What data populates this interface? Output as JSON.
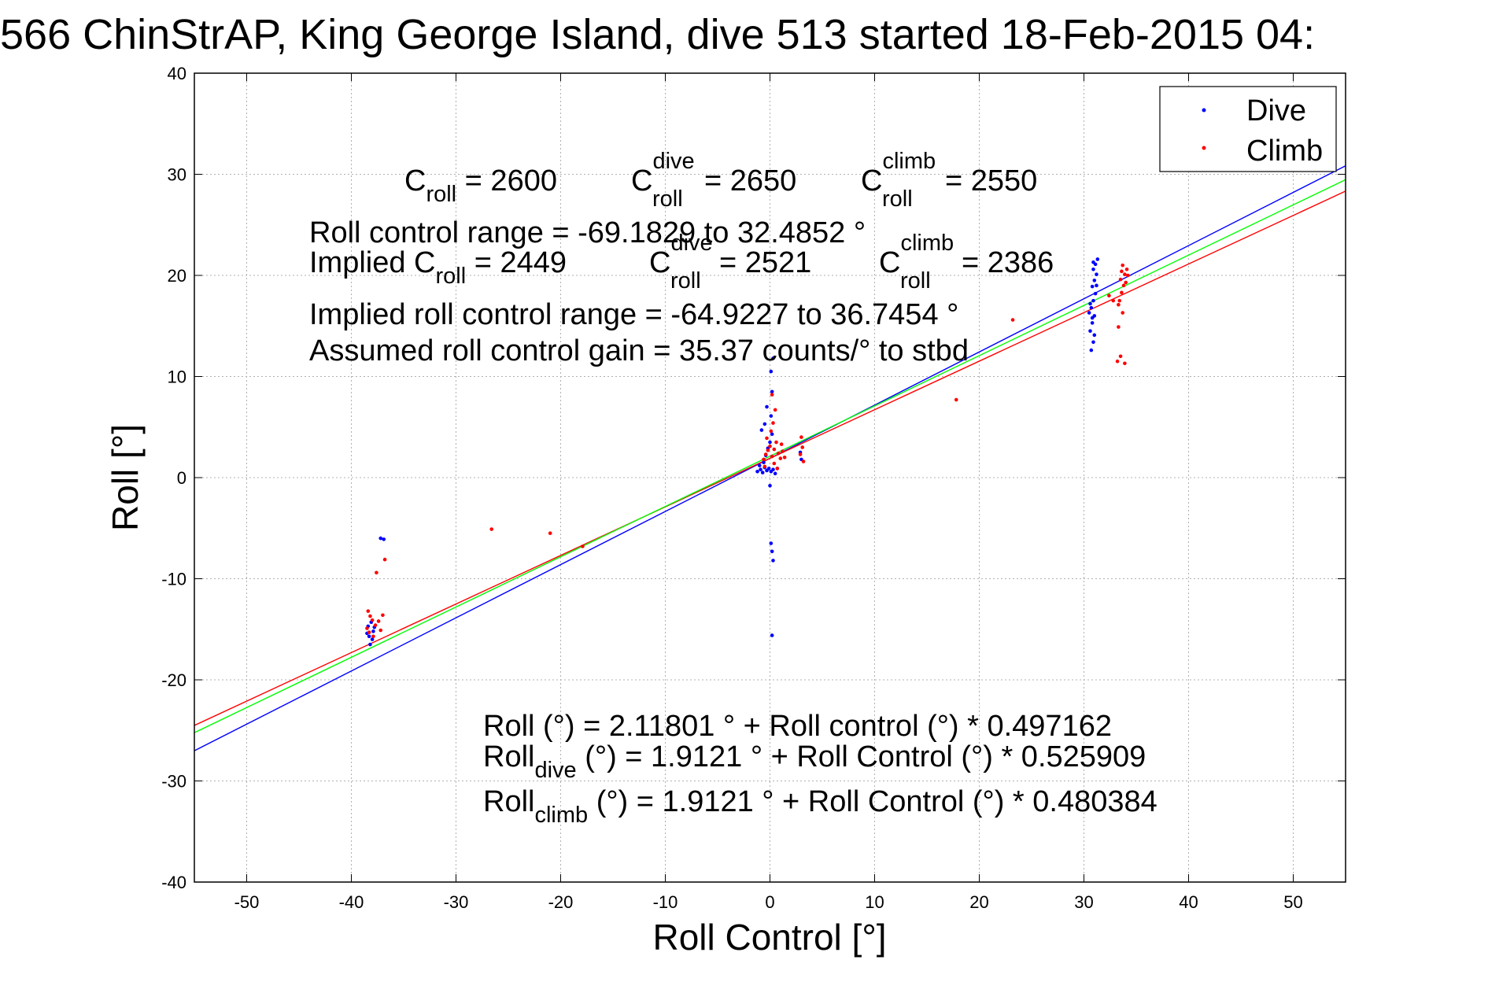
{
  "chart_data": {
    "type": "scatter",
    "title": "566 ChinStrAP, King George Island, dive 513 started 18-Feb-2015 04:",
    "xlabel": "Roll Control [°]",
    "ylabel": "Roll [°]",
    "xlim": [
      -55,
      55
    ],
    "ylim": [
      -40,
      40
    ],
    "xticks": [
      -50,
      -40,
      -30,
      -20,
      -10,
      0,
      10,
      20,
      30,
      40,
      50
    ],
    "yticks": [
      -40,
      -30,
      -20,
      -10,
      0,
      10,
      20,
      30,
      40
    ],
    "grid": true,
    "legend": {
      "placement": "top-right",
      "entries": [
        {
          "label": "Dive",
          "color": "#0000ff",
          "marker": "dot"
        },
        {
          "label": "Climb",
          "color": "#ff0000",
          "marker": "dot"
        }
      ]
    },
    "series": [
      {
        "name": "Dive",
        "color": "#0000ff",
        "points": [
          [
            -38.2,
            -16.5
          ],
          [
            -38.0,
            -16.0
          ],
          [
            -38.3,
            -15.7
          ],
          [
            -37.9,
            -15.2
          ],
          [
            -38.4,
            -14.7
          ],
          [
            -38.1,
            -14.3
          ],
          [
            -37.8,
            -14.8
          ],
          [
            -38.5,
            -15.4
          ],
          [
            -37.2,
            -6.0
          ],
          [
            -36.9,
            -6.1
          ],
          [
            -1.2,
            0.6
          ],
          [
            -0.9,
            0.8
          ],
          [
            -0.7,
            0.5
          ],
          [
            -0.5,
            1.0
          ],
          [
            -0.3,
            0.7
          ],
          [
            -0.1,
            0.9
          ],
          [
            0.1,
            0.6
          ],
          [
            0.3,
            0.8
          ],
          [
            0.5,
            0.4
          ],
          [
            0.7,
            0.9
          ],
          [
            -0.6,
            1.5
          ],
          [
            -0.4,
            2.2
          ],
          [
            -0.2,
            2.9
          ],
          [
            0.0,
            3.5
          ],
          [
            0.2,
            4.3
          ],
          [
            -0.8,
            4.7
          ],
          [
            -0.5,
            5.3
          ],
          [
            0.1,
            6.1
          ],
          [
            -0.3,
            7.0
          ],
          [
            0.2,
            8.5
          ],
          [
            0.1,
            10.5
          ],
          [
            0.3,
            11.8
          ],
          [
            0.0,
            -0.8
          ],
          [
            0.1,
            -6.5
          ],
          [
            0.2,
            -7.3
          ],
          [
            0.3,
            -8.2
          ],
          [
            0.2,
            -15.6
          ],
          [
            2.9,
            2.5
          ],
          [
            3.0,
            1.8
          ],
          [
            -1.0,
            1.2
          ],
          [
            30.7,
            12.6
          ],
          [
            30.9,
            13.4
          ],
          [
            30.6,
            14.5
          ],
          [
            30.8,
            15.3
          ],
          [
            31.0,
            16.0
          ],
          [
            30.7,
            16.8
          ],
          [
            30.9,
            17.5
          ],
          [
            31.1,
            18.2
          ],
          [
            30.8,
            18.9
          ],
          [
            31.0,
            19.5
          ],
          [
            31.2,
            20.1
          ],
          [
            30.9,
            20.6
          ],
          [
            31.1,
            21.1
          ],
          [
            31.3,
            21.6
          ],
          [
            30.6,
            17.2
          ],
          [
            30.8,
            15.8
          ],
          [
            31.0,
            14.1
          ],
          [
            30.5,
            16.3
          ],
          [
            31.2,
            19.0
          ],
          [
            30.9,
            21.3
          ]
        ]
      },
      {
        "name": "Climb",
        "color": "#ff0000",
        "points": [
          [
            -38.4,
            -13.2
          ],
          [
            -38.2,
            -13.7
          ],
          [
            -38.0,
            -14.1
          ],
          [
            -37.7,
            -14.6
          ],
          [
            -38.5,
            -14.9
          ],
          [
            -38.3,
            -15.3
          ],
          [
            -37.9,
            -15.7
          ],
          [
            -37.4,
            -14.2
          ],
          [
            -37.2,
            -15.1
          ],
          [
            -37.0,
            -13.6
          ],
          [
            -37.6,
            -9.4
          ],
          [
            -36.8,
            -8.1
          ],
          [
            -26.6,
            -5.1
          ],
          [
            -21.0,
            -5.5
          ],
          [
            -17.9,
            -6.8
          ],
          [
            -0.6,
            1.8
          ],
          [
            -0.4,
            2.3
          ],
          [
            -0.2,
            2.7
          ],
          [
            0.0,
            3.1
          ],
          [
            0.2,
            2.1
          ],
          [
            0.4,
            2.8
          ],
          [
            0.6,
            3.5
          ],
          [
            0.8,
            2.4
          ],
          [
            1.0,
            1.9
          ],
          [
            1.2,
            2.6
          ],
          [
            -0.3,
            3.9
          ],
          [
            0.1,
            4.6
          ],
          [
            0.3,
            5.4
          ],
          [
            0.5,
            6.7
          ],
          [
            0.2,
            8.2
          ],
          [
            0.4,
            1.4
          ],
          [
            0.7,
            0.9
          ],
          [
            -0.5,
            1.1
          ],
          [
            1.1,
            3.3
          ],
          [
            1.4,
            2.0
          ],
          [
            3.0,
            4.0
          ],
          [
            3.1,
            3.0
          ],
          [
            2.9,
            2.3
          ],
          [
            3.2,
            1.6
          ],
          [
            17.8,
            7.7
          ],
          [
            23.2,
            15.6
          ],
          [
            33.2,
            11.5
          ],
          [
            33.5,
            12.0
          ],
          [
            33.3,
            14.9
          ],
          [
            33.7,
            16.3
          ],
          [
            33.4,
            17.5
          ],
          [
            33.6,
            18.3
          ],
          [
            33.8,
            19.0
          ],
          [
            33.5,
            19.6
          ],
          [
            33.9,
            20.1
          ],
          [
            34.1,
            20.6
          ],
          [
            33.7,
            21.0
          ],
          [
            34.0,
            19.3
          ],
          [
            33.3,
            17.1
          ],
          [
            33.9,
            11.3
          ],
          [
            32.8,
            17.5
          ],
          [
            32.4,
            18.0
          ],
          [
            34.2,
            20.0
          ],
          [
            33.6,
            20.4
          ]
        ]
      }
    ],
    "lines": [
      {
        "color": "#0000ff",
        "intercept": 1.9121,
        "slope": 0.525909
      },
      {
        "color": "#ff0000",
        "intercept": 1.9121,
        "slope": 0.480384
      },
      {
        "color": "#00ff00",
        "intercept": 2.11801,
        "slope": 0.497162
      }
    ]
  },
  "annotations": {
    "c_roll": {
      "base": "C",
      "sub": "roll",
      "rest": " = 2600"
    },
    "c_dive": {
      "base": "C",
      "sup": "dive",
      "sub": "roll",
      "rest": " = 2650"
    },
    "c_climb": {
      "base": "C",
      "sup": "climb",
      "sub": "roll",
      "rest": " = 2550"
    },
    "range_line": "Roll control range = -69.1829 to 32.4852 °",
    "implied_c_roll": {
      "base": "Implied C",
      "sub": "roll",
      "rest": " = 2449"
    },
    "implied_c_dive": {
      "base": "C",
      "sup": "dive",
      "sub": "roll",
      "rest": " = 2521"
    },
    "implied_c_climb": {
      "base": "C",
      "sup": "climb",
      "sub": "roll",
      "rest": " = 2386"
    },
    "implied_range_line": "Implied roll control range = -64.9227 to 36.7454 °",
    "gain_line": "Assumed roll control gain = 35.37 counts/° to stbd",
    "fit_all": "Roll (°) = 2.11801 ° + Roll control (°) * 0.497162",
    "fit_dive": {
      "base": "Roll",
      "sub": "dive",
      "rest": " (°) = 1.9121 ° + Roll Control (°) * 0.525909"
    },
    "fit_climb": {
      "base": "Roll",
      "sub": "climb",
      "rest": " (°) = 1.9121 ° + Roll Control (°) * 0.480384"
    }
  }
}
